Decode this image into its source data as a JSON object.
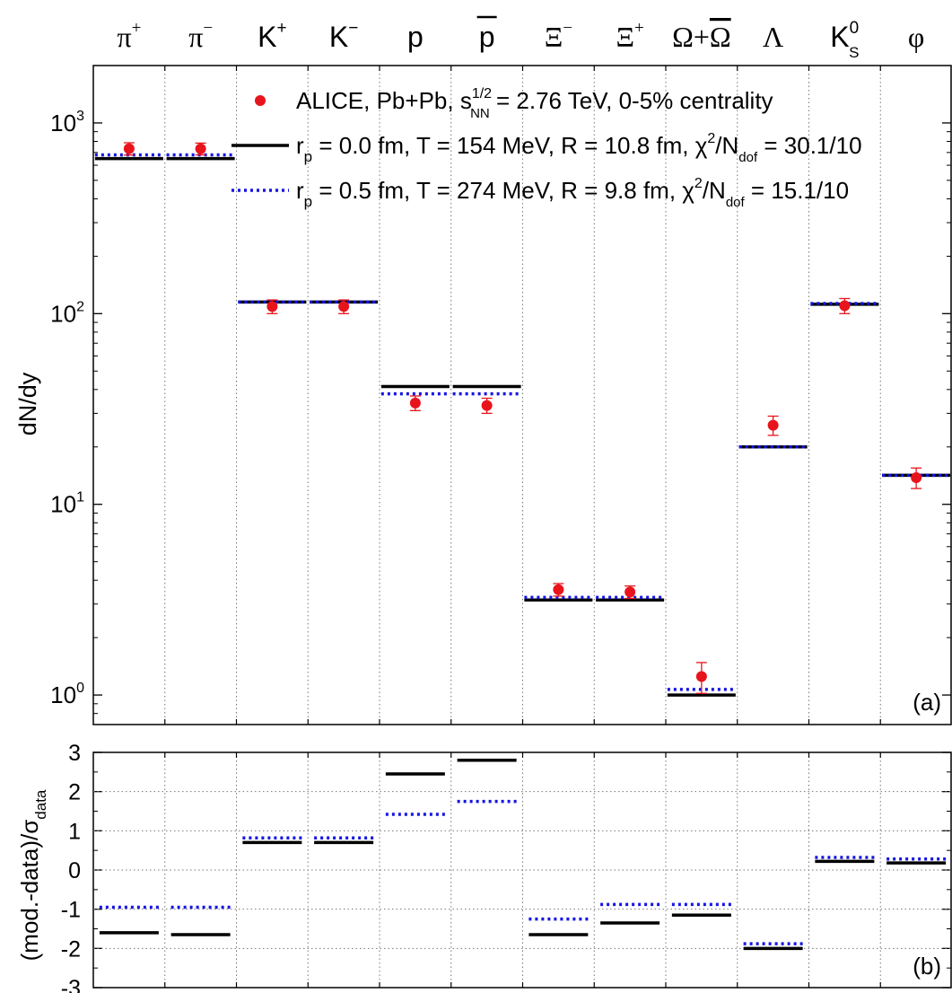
{
  "chart_data": [
    {
      "id": "a",
      "type": "scatter",
      "panel_label": "(a)",
      "ylabel": "dN/dy",
      "yscale": "log",
      "ylim": [
        0.7,
        2000
      ],
      "y_ticks": [
        {
          "value": 1,
          "base": "10",
          "exp": "0"
        },
        {
          "value": 10,
          "base": "10",
          "exp": "1"
        },
        {
          "value": 100,
          "base": "10",
          "exp": "2"
        },
        {
          "value": 1000,
          "base": "10",
          "exp": "3"
        }
      ],
      "grid": "vertical dotted",
      "legend_position": "top-right",
      "categories": [
        {
          "main": "π",
          "sup": "+",
          "sub": "",
          "overline": false,
          "font": "serif"
        },
        {
          "main": "π",
          "sup": "−",
          "sub": "",
          "overline": false,
          "font": "serif"
        },
        {
          "main": "K",
          "sup": "+",
          "sub": "",
          "overline": false,
          "font": "sans"
        },
        {
          "main": "K",
          "sup": "−",
          "sub": "",
          "overline": false,
          "font": "sans"
        },
        {
          "main": "p",
          "sup": "",
          "sub": "",
          "overline": false,
          "font": "sans"
        },
        {
          "main": "p",
          "sup": "",
          "sub": "",
          "overline": true,
          "font": "sans"
        },
        {
          "main": "Ξ",
          "sup": "−",
          "sub": "",
          "overline": false,
          "font": "serif"
        },
        {
          "main": "Ξ",
          "sup": "+",
          "sub": "",
          "overline": false,
          "font": "serif"
        },
        {
          "main": "Ω+",
          "main2": "Ω",
          "sup": "",
          "sub": "",
          "overline": false,
          "font": "serif"
        },
        {
          "main": "Λ",
          "sup": "",
          "sub": "",
          "overline": false,
          "font": "serif"
        },
        {
          "main": "K",
          "sup": "0",
          "sub": "S",
          "overline": false,
          "font": "sans"
        },
        {
          "main": "φ",
          "sup": "",
          "sub": "",
          "overline": false,
          "font": "serif"
        }
      ],
      "series": [
        {
          "key": "data",
          "style": "red-dot-errorbar",
          "color": "#e8141c",
          "legend": [
            "ALICE, Pb+Pb, s",
            "NN",
            "1/2",
            " = 2.76 TeV, 0-5% centrality"
          ],
          "values": [
            733,
            732,
            109,
            109,
            34,
            33,
            3.57,
            3.47,
            1.25,
            26,
            110,
            13.8
          ],
          "errors": [
            54,
            52,
            9,
            9,
            3,
            3,
            0.27,
            0.26,
            0.23,
            3,
            10,
            1.7
          ]
        },
        {
          "key": "rp0",
          "style": "black-solid",
          "color": "#000000",
          "legend": [
            "r",
            "p",
            " = 0.0 fm, T = 154 MeV, R = 10.8 fm, χ",
            "2",
            "/N",
            "dof",
            " = 30.1/10"
          ],
          "values": [
            650,
            650,
            115,
            115,
            41.5,
            41.5,
            3.15,
            3.15,
            1.0,
            20,
            112,
            14.2
          ]
        },
        {
          "key": "rp05",
          "style": "blue-dotted",
          "color": "#1515e6",
          "legend": [
            "r",
            "p",
            " = 0.5 fm, T = 274 MeV, R =   9.8 fm, χ",
            "2",
            "/N",
            "dof",
            " = 15.1/10"
          ],
          "values": [
            680,
            680,
            115,
            115,
            38,
            38,
            3.25,
            3.25,
            1.07,
            20,
            113,
            14.2
          ]
        }
      ]
    },
    {
      "id": "b",
      "type": "scatter",
      "panel_label": "(b)",
      "ylabel": [
        "(mod.-data)/σ",
        "data"
      ],
      "ylim": [
        -3,
        3
      ],
      "y_ticks": [
        "-3",
        "-2",
        "-1",
        "0",
        "1",
        "2",
        "3"
      ],
      "grid": "dotted",
      "series": [
        {
          "key": "rp0",
          "style": "black-solid",
          "color": "#000000",
          "values": [
            -1.6,
            -1.65,
            0.7,
            0.7,
            2.45,
            2.8,
            -1.65,
            -1.35,
            -1.15,
            -2.0,
            0.22,
            0.18
          ]
        },
        {
          "key": "rp05",
          "style": "blue-dotted",
          "color": "#1515e6",
          "values": [
            -0.95,
            -0.95,
            0.82,
            0.82,
            1.42,
            1.75,
            -1.25,
            -0.88,
            -0.88,
            -1.88,
            0.32,
            0.28
          ]
        }
      ]
    }
  ]
}
